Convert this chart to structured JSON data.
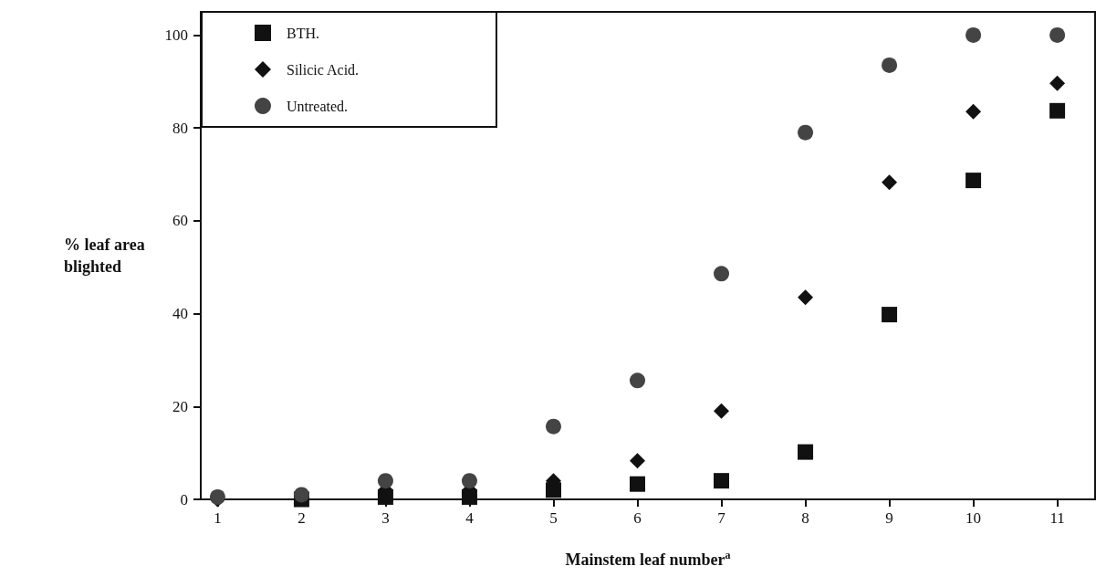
{
  "chart_data": {
    "type": "scatter",
    "xlabel": "Mainstem leaf number$^{a}$",
    "ylabel": "% leaf area\nblighted",
    "x": [
      1,
      2,
      3,
      4,
      5,
      6,
      7,
      8,
      9,
      10,
      11
    ],
    "xlim": [
      0.8,
      11.45
    ],
    "xticks": [
      1,
      2,
      3,
      4,
      5,
      6,
      7,
      8,
      9,
      10,
      11
    ],
    "ylim": [
      0,
      105
    ],
    "yticks": [
      0,
      20,
      40,
      60,
      80,
      100
    ],
    "grid": false,
    "legend": "top left",
    "series": [
      {
        "name": "BTH.",
        "color": "#111111",
        "marker": "square",
        "values": [
          null,
          0,
          0.5,
          0.5,
          2,
          3.3,
          4,
          10.2,
          39.8,
          68.7,
          83.7
        ]
      },
      {
        "name": "Silicic Acid.",
        "color": "#111111",
        "marker": "diamond",
        "values": [
          0,
          null,
          2,
          2,
          4,
          8.3,
          19,
          43.5,
          68.3,
          83.5,
          89.6
        ]
      },
      {
        "name": "Untreated.",
        "color": "#444444",
        "marker": "circle",
        "values": [
          0.5,
          1,
          4,
          4,
          15.7,
          25.6,
          48.6,
          79,
          93.5,
          100,
          100
        ]
      }
    ]
  }
}
